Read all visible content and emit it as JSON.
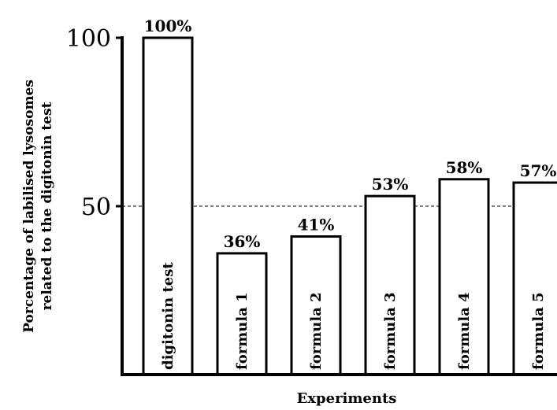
{
  "chart_data": {
    "type": "bar",
    "categories": [
      "digitonin test",
      "formula 1",
      "formula 2",
      "formula 3",
      "formula 4",
      "formula 5"
    ],
    "values": [
      100,
      36,
      41,
      53,
      58,
      57
    ],
    "data_labels": [
      "100%",
      "36%",
      "41%",
      "53%",
      "58%",
      "57%"
    ],
    "ylabel_lines": [
      "Porcentage of labilised lysosomes",
      "related to the digitonin test"
    ],
    "xlabel": "Experiments",
    "ylim": [
      0,
      100
    ],
    "y_ticks": [
      50,
      100
    ],
    "y_tick_labels": [
      "50",
      "100"
    ],
    "reference_line": 50,
    "grid": false,
    "colors": {
      "bar_fill": "#ffffff",
      "bar_stroke": "#000000",
      "axis": "#000000"
    }
  }
}
